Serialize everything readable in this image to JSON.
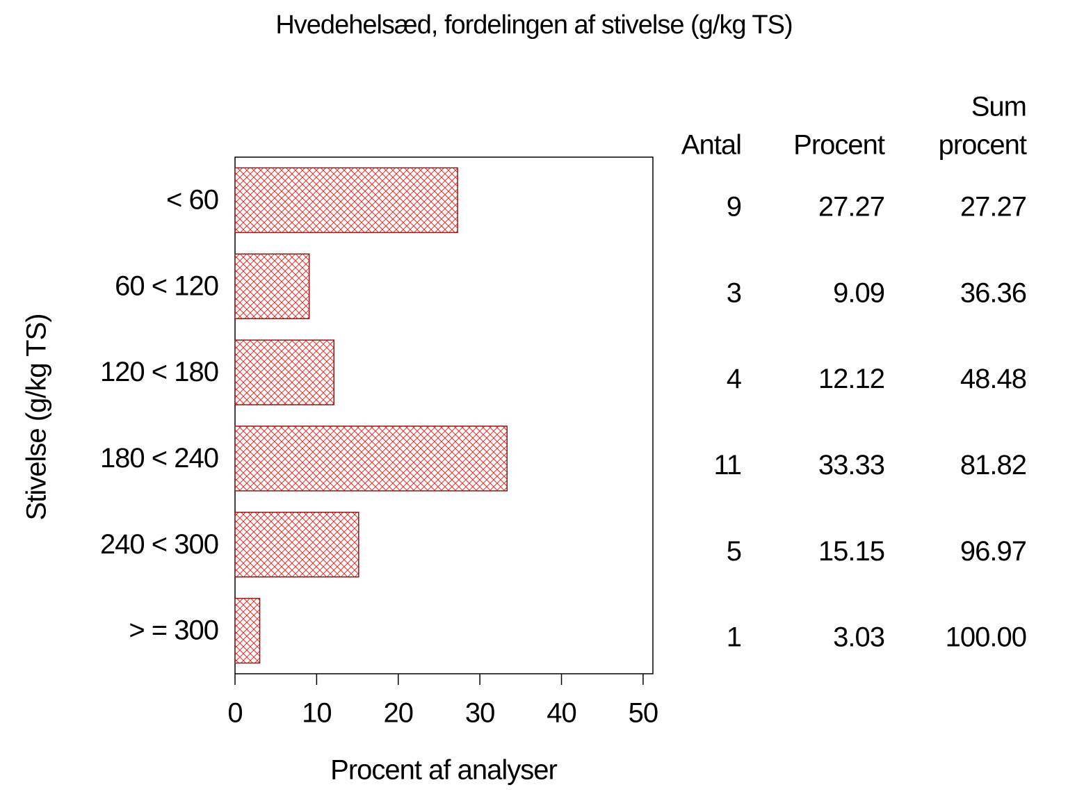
{
  "chart_data": {
    "type": "hbar",
    "title": "Hvedehelsæd, fordelingen af stivelse (g/kg TS)",
    "x_label": "Procent af analyser",
    "y_label": "Stivelse (g/kg TS)",
    "categories": [
      "< 60",
      "60 < 120",
      "120 < 180",
      "180 < 240",
      "240 < 300",
      "> = 300"
    ],
    "values": [
      27.27,
      9.09,
      12.12,
      33.33,
      15.15,
      3.03
    ],
    "color": "#e8302a",
    "edge_color": "#8b1a1a",
    "xlim": [
      0,
      51.2
    ],
    "xticks": [
      0,
      10,
      20,
      30,
      40,
      50
    ],
    "table": {
      "columns": [
        {
          "header": [
            "Antal"
          ],
          "values": [
            9,
            3,
            4,
            11,
            5,
            1
          ]
        },
        {
          "header": [
            "Procent"
          ],
          "values": [
            27.27,
            9.09,
            12.12,
            33.33,
            15.15,
            3.03
          ]
        },
        {
          "header": [
            "Sum",
            "procent"
          ],
          "values": [
            27.27,
            36.36,
            48.48,
            81.82,
            96.97,
            100
          ],
          "value_labels": [
            "27.27",
            "36.36",
            "48.48",
            "81.82",
            "96.97",
            "100.00"
          ]
        }
      ]
    }
  }
}
